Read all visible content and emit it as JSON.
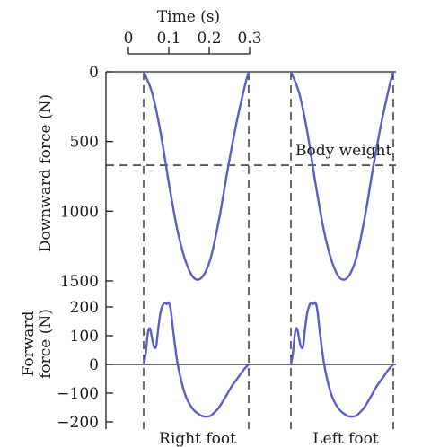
{
  "chart_data": [
    {
      "type": "line",
      "panel": "downward-force",
      "ylabel": "Downward force (N)",
      "yticks": [
        0,
        500,
        1000,
        1500
      ],
      "ylim": [
        0,
        1500
      ],
      "y_inverted": true,
      "time_axis": {
        "label": "Time (s)",
        "ticks": [
          "0",
          "0.1",
          "0.2",
          "0.3"
        ],
        "range": [
          0,
          0.3
        ]
      },
      "reference_line": {
        "label": "Body weight",
        "value": 670
      },
      "series": [
        {
          "name": "Right foot",
          "x": [
            0.0,
            0.02,
            0.04,
            0.06,
            0.08,
            0.1,
            0.12,
            0.14,
            0.16,
            0.18,
            0.2,
            0.22,
            0.24,
            0.25
          ],
          "y": [
            0,
            150,
            430,
            800,
            1130,
            1360,
            1480,
            1470,
            1330,
            1050,
            700,
            380,
            110,
            0
          ]
        },
        {
          "name": "Left foot",
          "x": [
            0.0,
            0.02,
            0.04,
            0.06,
            0.08,
            0.1,
            0.12,
            0.14,
            0.16,
            0.18,
            0.2,
            0.22,
            0.24,
            0.25
          ],
          "y": [
            0,
            150,
            430,
            800,
            1130,
            1360,
            1480,
            1470,
            1330,
            1050,
            700,
            380,
            110,
            0
          ]
        }
      ]
    },
    {
      "type": "line",
      "panel": "forward-force",
      "ylabel": "Forward force (N)",
      "ylabel_lines": [
        "Forward",
        "force (N)"
      ],
      "yticks": [
        200,
        100,
        0,
        -100,
        -200
      ],
      "ylim": [
        -200,
        200
      ],
      "series": [
        {
          "name": "Right foot",
          "x": [
            0.0,
            0.005,
            0.01,
            0.015,
            0.02,
            0.025,
            0.03,
            0.035,
            0.04,
            0.045,
            0.05,
            0.055,
            0.06,
            0.065,
            0.07,
            0.08,
            0.09,
            0.1,
            0.11,
            0.12,
            0.13,
            0.14,
            0.15,
            0.16,
            0.17,
            0.18,
            0.19,
            0.2,
            0.21,
            0.22,
            0.23,
            0.24,
            0.25
          ],
          "y": [
            0,
            40,
            110,
            125,
            90,
            60,
            65,
            130,
            180,
            205,
            215,
            210,
            215,
            185,
            120,
            10,
            -60,
            -110,
            -140,
            -160,
            -172,
            -180,
            -182,
            -178,
            -165,
            -148,
            -125,
            -100,
            -75,
            -55,
            -35,
            -15,
            0
          ]
        },
        {
          "name": "Left foot",
          "x": [
            0.0,
            0.005,
            0.01,
            0.015,
            0.02,
            0.025,
            0.03,
            0.035,
            0.04,
            0.045,
            0.05,
            0.055,
            0.06,
            0.065,
            0.07,
            0.08,
            0.09,
            0.1,
            0.11,
            0.12,
            0.13,
            0.14,
            0.15,
            0.16,
            0.17,
            0.18,
            0.19,
            0.2,
            0.21,
            0.22,
            0.23,
            0.24,
            0.25
          ],
          "y": [
            0,
            40,
            110,
            125,
            90,
            60,
            65,
            130,
            180,
            205,
            215,
            210,
            215,
            185,
            120,
            10,
            -60,
            -110,
            -140,
            -160,
            -172,
            -180,
            -182,
            -178,
            -165,
            -148,
            -125,
            -100,
            -75,
            -55,
            -35,
            -15,
            0
          ]
        }
      ]
    }
  ],
  "labels": {
    "time_axis": "Time (s)",
    "body_weight": "Body weight",
    "right_foot": "Right foot",
    "left_foot": "Left foot",
    "downward_ylabel": "Downward force (N)",
    "forward_ylabel_1": "Forward",
    "forward_ylabel_2": "force (N)"
  },
  "colors": {
    "curve": "#5a5ec8",
    "ink": "#1a1a1a"
  }
}
